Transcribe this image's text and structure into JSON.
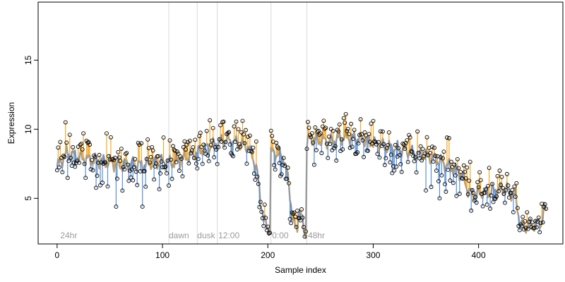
{
  "chart_data": {
    "type": "scatter",
    "title": "",
    "xlabel": "Sample index",
    "ylabel": "Expression",
    "xlim": [
      -18,
      480
    ],
    "ylim": [
      1.7,
      19.2
    ],
    "x_ticks": [
      0,
      100,
      200,
      300,
      400
    ],
    "y_ticks": [
      5,
      10,
      15
    ],
    "grid": false,
    "legend": "none",
    "colors": {
      "above": "#f5a623",
      "below": "#5b8fd6",
      "fit": "#9a9a9a",
      "marker_edge": "#000000",
      "divider": "#d9d9d9",
      "phase_text": "#9b9b9b"
    },
    "phase_markers": [
      {
        "label": "24hr",
        "x": 3
      },
      {
        "label": "dawn",
        "x": 106
      },
      {
        "label": "dusk",
        "x": 133
      },
      {
        "label": "12:00",
        "x": 153
      },
      {
        "label": "0:00",
        "x": 204
      },
      {
        "label": "48hr",
        "x": 238
      }
    ],
    "dividers": [
      106,
      133,
      152,
      203,
      237
    ],
    "fit_anchors": [
      [
        0,
        7.3
      ],
      [
        10,
        8.3
      ],
      [
        20,
        8.0
      ],
      [
        30,
        7.8
      ],
      [
        40,
        7.7
      ],
      [
        50,
        7.6
      ],
      [
        60,
        7.4
      ],
      [
        70,
        7.5
      ],
      [
        80,
        7.4
      ],
      [
        90,
        7.6
      ],
      [
        100,
        7.6
      ],
      [
        110,
        7.6
      ],
      [
        120,
        7.9
      ],
      [
        130,
        8.2
      ],
      [
        140,
        8.6
      ],
      [
        150,
        8.9
      ],
      [
        160,
        9.3
      ],
      [
        170,
        9.0
      ],
      [
        180,
        8.8
      ],
      [
        185,
        8.2
      ],
      [
        190,
        6.8
      ],
      [
        193,
        5.0
      ],
      [
        196,
        3.4
      ],
      [
        200,
        2.9
      ],
      [
        202,
        2.7
      ],
      [
        203,
        8.3
      ],
      [
        210,
        8.2
      ],
      [
        215,
        8.0
      ],
      [
        220,
        6.0
      ],
      [
        224,
        3.2
      ],
      [
        228,
        2.8
      ],
      [
        229,
        4.2
      ],
      [
        232,
        3.6
      ],
      [
        234,
        2.9
      ],
      [
        236,
        2.3
      ],
      [
        237,
        9.0
      ],
      [
        240,
        9.3
      ],
      [
        250,
        9.2
      ],
      [
        260,
        9.1
      ],
      [
        270,
        9.4
      ],
      [
        280,
        9.4
      ],
      [
        290,
        9.3
      ],
      [
        300,
        9.0
      ],
      [
        310,
        8.8
      ],
      [
        320,
        8.6
      ],
      [
        330,
        8.5
      ],
      [
        340,
        8.2
      ],
      [
        350,
        8.1
      ],
      [
        360,
        7.8
      ],
      [
        370,
        7.4
      ],
      [
        380,
        7.0
      ],
      [
        385,
        6.6
      ],
      [
        390,
        5.6
      ],
      [
        395,
        5.2
      ],
      [
        400,
        5.4
      ],
      [
        410,
        5.5
      ],
      [
        420,
        5.6
      ],
      [
        425,
        5.7
      ],
      [
        430,
        5.5
      ],
      [
        435,
        5.1
      ],
      [
        440,
        3.0
      ],
      [
        450,
        3.0
      ],
      [
        460,
        3.3
      ],
      [
        462,
        4.2
      ]
    ],
    "feature_points": [
      [
        8,
        10.5
      ],
      [
        12,
        9.6
      ],
      [
        25,
        9.7
      ],
      [
        47,
        9.7
      ],
      [
        56,
        4.4
      ],
      [
        81,
        4.4
      ],
      [
        90,
        8.7
      ],
      [
        101,
        9.4
      ],
      [
        172,
        10.0
      ],
      [
        196,
        3.0
      ],
      [
        199,
        2.7
      ],
      [
        205,
        9.1
      ],
      [
        221,
        3.5
      ],
      [
        228,
        4.1
      ],
      [
        232,
        4.2
      ],
      [
        236,
        2.6
      ],
      [
        239,
        10.1
      ],
      [
        252,
        10.2
      ],
      [
        272,
        10.8
      ],
      [
        298,
        10.4
      ],
      [
        300,
        10.6
      ],
      [
        322,
        7.3
      ],
      [
        363,
        5.0
      ],
      [
        395,
        5.4
      ],
      [
        410,
        7.2
      ],
      [
        420,
        7.0
      ],
      [
        433,
        4.0
      ],
      [
        441,
        3.0
      ],
      [
        455,
        2.9
      ],
      [
        460,
        4.6
      ]
    ],
    "point_count": 465
  }
}
